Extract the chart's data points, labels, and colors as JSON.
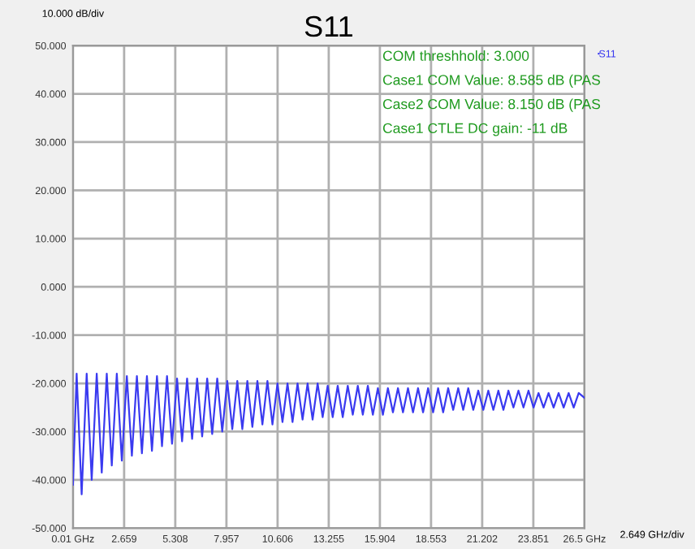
{
  "chart_data": {
    "type": "line",
    "title": "S11",
    "ylabel": "10.000 dB/div",
    "xlabel": "2.649 GHz/div",
    "annotations": [
      "COM threshhold: 3.000",
      "Case1 COM Value: 8.585 dB (PAS",
      "Case2 COM Value: 8.150 dB (PAS",
      "Case1 CTLE DC gain: -11 dB"
    ],
    "xlim": [
      0.01,
      26.5
    ],
    "ylim": [
      -50,
      50
    ],
    "xticks": [
      {
        "value": 0.01,
        "label": "0.01 GHz"
      },
      2.659,
      5.308,
      7.957,
      10.606,
      13.255,
      15.904,
      18.553,
      21.202,
      23.851,
      {
        "value": 26.5,
        "label": "26.5 GHz"
      }
    ],
    "yticks": [
      {
        "value": -50,
        "label": "-50.000"
      },
      {
        "value": -40,
        "label": "-40.000"
      },
      {
        "value": -30,
        "label": "-30.000"
      },
      {
        "value": -20,
        "label": "-20.000"
      },
      {
        "value": -10,
        "label": "-10.000"
      },
      {
        "value": 0,
        "label": "0.000"
      },
      {
        "value": 10,
        "label": "10.000"
      },
      {
        "value": 20,
        "label": "20.000"
      },
      {
        "value": 30,
        "label": "30.000"
      },
      {
        "value": 40,
        "label": "40.000"
      },
      {
        "value": 50,
        "label": "50.000"
      }
    ],
    "grid": true,
    "legend": "top right",
    "marker": "none",
    "line_style": "solid",
    "series": [
      {
        "name": "S11",
        "color": "#3a3af0",
        "x": [
          0.01,
          0.2,
          0.46,
          0.72,
          0.98,
          1.24,
          1.5,
          1.76,
          2.02,
          2.28,
          2.54,
          2.8,
          3.06,
          3.32,
          3.58,
          3.84,
          4.1,
          4.36,
          4.62,
          4.88,
          5.14,
          5.4,
          5.66,
          5.92,
          6.18,
          6.44,
          6.7,
          6.96,
          7.22,
          7.48,
          7.74,
          8.0,
          8.26,
          8.52,
          8.78,
          9.04,
          9.3,
          9.56,
          9.82,
          10.08,
          10.34,
          10.6,
          10.86,
          11.12,
          11.38,
          11.64,
          11.9,
          12.16,
          12.42,
          12.68,
          12.94,
          13.2,
          13.46,
          13.72,
          13.98,
          14.24,
          14.5,
          14.76,
          15.02,
          15.28,
          15.54,
          15.8,
          16.06,
          16.32,
          16.58,
          16.84,
          17.1,
          17.36,
          17.62,
          17.88,
          18.14,
          18.4,
          18.66,
          18.92,
          19.18,
          19.44,
          19.7,
          19.96,
          20.22,
          20.48,
          20.74,
          21.0,
          21.26,
          21.52,
          21.78,
          22.04,
          22.3,
          22.56,
          22.82,
          23.08,
          23.34,
          23.6,
          23.86,
          24.12,
          24.38,
          24.64,
          24.9,
          25.16,
          25.42,
          25.68,
          25.94,
          26.2,
          26.5
        ],
        "values": [
          -41,
          -18,
          -43,
          -18,
          -40,
          -18,
          -38.5,
          -18,
          -37,
          -18,
          -36,
          -18.5,
          -35,
          -18.5,
          -34.5,
          -18.5,
          -34,
          -18.5,
          -33,
          -18.5,
          -32.5,
          -19,
          -32,
          -19,
          -31.5,
          -19,
          -31,
          -19,
          -30.5,
          -19,
          -30,
          -19.5,
          -29.5,
          -19.5,
          -29.5,
          -19.5,
          -29,
          -19.5,
          -28.5,
          -19.5,
          -28.5,
          -20,
          -28,
          -20,
          -28,
          -20,
          -27.5,
          -20,
          -27.5,
          -20,
          -27,
          -20.5,
          -27,
          -20.5,
          -27,
          -20.5,
          -26.5,
          -20.5,
          -26.5,
          -20.5,
          -26.5,
          -21,
          -26.5,
          -21,
          -26,
          -21,
          -26,
          -21,
          -26,
          -21,
          -26,
          -21,
          -26,
          -21,
          -26,
          -21,
          -25.5,
          -21,
          -25.5,
          -21,
          -25.5,
          -21.5,
          -25.5,
          -21.5,
          -25.5,
          -21.5,
          -25.5,
          -21.5,
          -25,
          -21.5,
          -25,
          -21.5,
          -25,
          -22,
          -25,
          -22,
          -25,
          -22,
          -25,
          -22,
          -25,
          -22,
          -23
        ]
      }
    ]
  }
}
